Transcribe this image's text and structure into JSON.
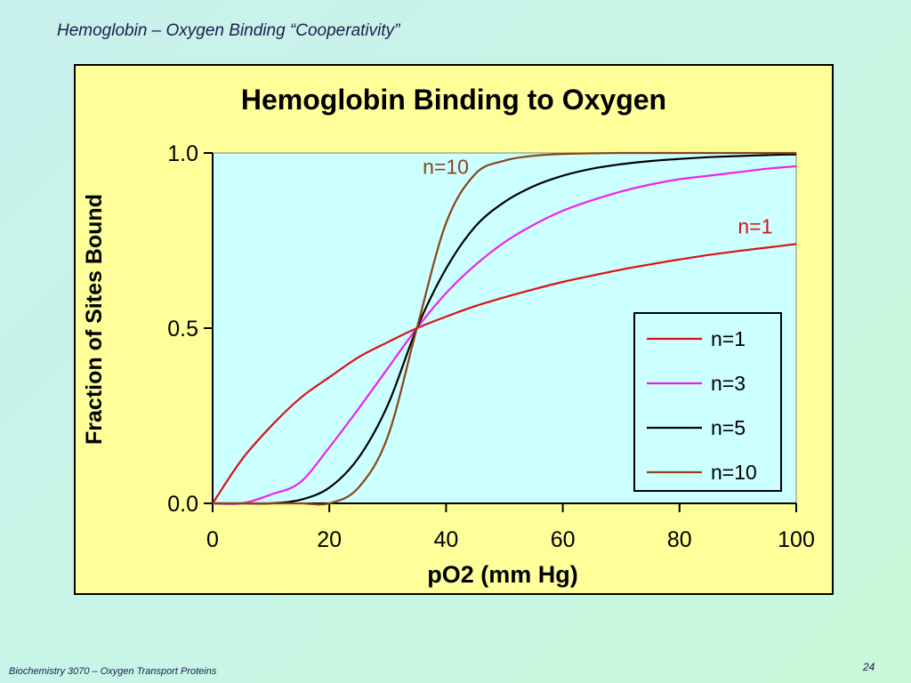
{
  "slide": {
    "title": "Hemoglobin – Oxygen Binding “Cooperativity”",
    "footer": "Biochemistry 3070 – Oxygen Transport Proteins",
    "page_number": "24"
  },
  "colors": {
    "plot_background": "#ccffff",
    "frame_background": "#ffff99",
    "n1": "#dd1111",
    "n3": "#ee22ee",
    "n5": "#000000",
    "n10": "#8b4513"
  },
  "chart_data": {
    "type": "line",
    "title": "Hemoglobin Binding to Oxygen",
    "xlabel": "pO2 (mm Hg)",
    "ylabel": "Fraction of Sites Bound",
    "xlim": [
      0,
      100
    ],
    "ylim": [
      0,
      1
    ],
    "x_ticks": [
      "0",
      "20",
      "40",
      "60",
      "80",
      "100"
    ],
    "y_ticks": [
      "0.0",
      "0.5",
      "1.0"
    ],
    "grid": false,
    "legend_placement": "bottom-right",
    "x": [
      0,
      5,
      10,
      15,
      20,
      25,
      30,
      35,
      40,
      45,
      50,
      55,
      60,
      65,
      70,
      75,
      80,
      85,
      90,
      95,
      100
    ],
    "series": [
      {
        "name": "n=1",
        "color_key": "n1",
        "values": [
          0.0,
          0.125,
          0.22,
          0.3,
          0.36,
          0.417,
          0.46,
          0.5,
          0.533,
          0.563,
          0.588,
          0.611,
          0.632,
          0.65,
          0.667,
          0.682,
          0.696,
          0.709,
          0.72,
          0.73,
          0.74
        ]
      },
      {
        "name": "n=3",
        "color_key": "n3",
        "values": [
          0.0,
          0.0,
          0.025,
          0.06,
          0.16,
          0.27,
          0.385,
          0.5,
          0.6,
          0.68,
          0.745,
          0.795,
          0.835,
          0.865,
          0.89,
          0.91,
          0.925,
          0.935,
          0.945,
          0.955,
          0.962
        ]
      },
      {
        "name": "n=5",
        "color_key": "n5",
        "values": [
          0.0,
          0.0,
          0.0,
          0.01,
          0.045,
          0.13,
          0.28,
          0.5,
          0.67,
          0.79,
          0.86,
          0.905,
          0.935,
          0.955,
          0.968,
          0.977,
          0.983,
          0.988,
          0.991,
          0.994,
          0.996
        ]
      },
      {
        "name": "n=10",
        "color_key": "n10",
        "values": [
          0.0,
          0.0,
          0.0,
          0.0,
          0.0,
          0.045,
          0.19,
          0.5,
          0.8,
          0.94,
          0.978,
          0.992,
          0.997,
          0.999,
          1.0,
          1.0,
          1.0,
          1.0,
          1.0,
          1.0,
          1.0
        ]
      }
    ],
    "annotations": [
      {
        "text": "n=10",
        "x": 36,
        "y": 0.94,
        "color_key": "n10"
      },
      {
        "text": "n=1",
        "x": 90,
        "y": 0.77,
        "color_key": "n1"
      }
    ]
  }
}
